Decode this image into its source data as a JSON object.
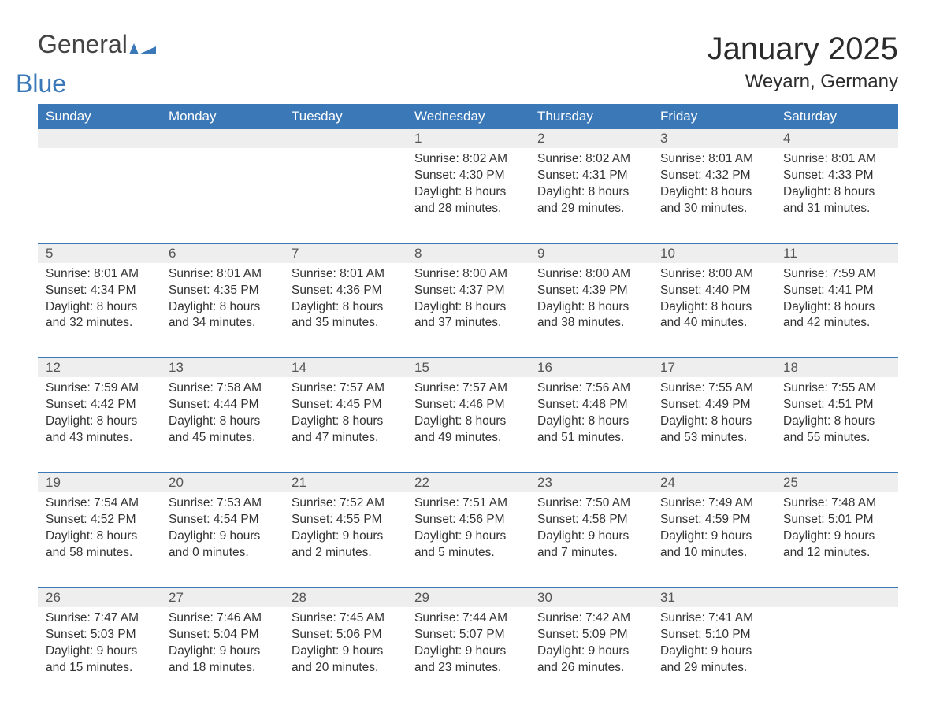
{
  "logo": {
    "word1": "General",
    "word2": "Blue",
    "icon_color": "#3b78b8"
  },
  "title": "January 2025",
  "location": "Weyarn, Germany",
  "colors": {
    "header_bg": "#3b78b8",
    "header_text": "#ffffff",
    "daynum_bg": "#eeeeee",
    "body_text": "#333333",
    "rule": "#3b78b8"
  },
  "weekdays": [
    "Sunday",
    "Monday",
    "Tuesday",
    "Wednesday",
    "Thursday",
    "Friday",
    "Saturday"
  ],
  "weeks": [
    [
      null,
      null,
      null,
      {
        "n": "1",
        "sunrise": "Sunrise: 8:02 AM",
        "sunset": "Sunset: 4:30 PM",
        "d1": "Daylight: 8 hours",
        "d2": "and 28 minutes."
      },
      {
        "n": "2",
        "sunrise": "Sunrise: 8:02 AM",
        "sunset": "Sunset: 4:31 PM",
        "d1": "Daylight: 8 hours",
        "d2": "and 29 minutes."
      },
      {
        "n": "3",
        "sunrise": "Sunrise: 8:01 AM",
        "sunset": "Sunset: 4:32 PM",
        "d1": "Daylight: 8 hours",
        "d2": "and 30 minutes."
      },
      {
        "n": "4",
        "sunrise": "Sunrise: 8:01 AM",
        "sunset": "Sunset: 4:33 PM",
        "d1": "Daylight: 8 hours",
        "d2": "and 31 minutes."
      }
    ],
    [
      {
        "n": "5",
        "sunrise": "Sunrise: 8:01 AM",
        "sunset": "Sunset: 4:34 PM",
        "d1": "Daylight: 8 hours",
        "d2": "and 32 minutes."
      },
      {
        "n": "6",
        "sunrise": "Sunrise: 8:01 AM",
        "sunset": "Sunset: 4:35 PM",
        "d1": "Daylight: 8 hours",
        "d2": "and 34 minutes."
      },
      {
        "n": "7",
        "sunrise": "Sunrise: 8:01 AM",
        "sunset": "Sunset: 4:36 PM",
        "d1": "Daylight: 8 hours",
        "d2": "and 35 minutes."
      },
      {
        "n": "8",
        "sunrise": "Sunrise: 8:00 AM",
        "sunset": "Sunset: 4:37 PM",
        "d1": "Daylight: 8 hours",
        "d2": "and 37 minutes."
      },
      {
        "n": "9",
        "sunrise": "Sunrise: 8:00 AM",
        "sunset": "Sunset: 4:39 PM",
        "d1": "Daylight: 8 hours",
        "d2": "and 38 minutes."
      },
      {
        "n": "10",
        "sunrise": "Sunrise: 8:00 AM",
        "sunset": "Sunset: 4:40 PM",
        "d1": "Daylight: 8 hours",
        "d2": "and 40 minutes."
      },
      {
        "n": "11",
        "sunrise": "Sunrise: 7:59 AM",
        "sunset": "Sunset: 4:41 PM",
        "d1": "Daylight: 8 hours",
        "d2": "and 42 minutes."
      }
    ],
    [
      {
        "n": "12",
        "sunrise": "Sunrise: 7:59 AM",
        "sunset": "Sunset: 4:42 PM",
        "d1": "Daylight: 8 hours",
        "d2": "and 43 minutes."
      },
      {
        "n": "13",
        "sunrise": "Sunrise: 7:58 AM",
        "sunset": "Sunset: 4:44 PM",
        "d1": "Daylight: 8 hours",
        "d2": "and 45 minutes."
      },
      {
        "n": "14",
        "sunrise": "Sunrise: 7:57 AM",
        "sunset": "Sunset: 4:45 PM",
        "d1": "Daylight: 8 hours",
        "d2": "and 47 minutes."
      },
      {
        "n": "15",
        "sunrise": "Sunrise: 7:57 AM",
        "sunset": "Sunset: 4:46 PM",
        "d1": "Daylight: 8 hours",
        "d2": "and 49 minutes."
      },
      {
        "n": "16",
        "sunrise": "Sunrise: 7:56 AM",
        "sunset": "Sunset: 4:48 PM",
        "d1": "Daylight: 8 hours",
        "d2": "and 51 minutes."
      },
      {
        "n": "17",
        "sunrise": "Sunrise: 7:55 AM",
        "sunset": "Sunset: 4:49 PM",
        "d1": "Daylight: 8 hours",
        "d2": "and 53 minutes."
      },
      {
        "n": "18",
        "sunrise": "Sunrise: 7:55 AM",
        "sunset": "Sunset: 4:51 PM",
        "d1": "Daylight: 8 hours",
        "d2": "and 55 minutes."
      }
    ],
    [
      {
        "n": "19",
        "sunrise": "Sunrise: 7:54 AM",
        "sunset": "Sunset: 4:52 PM",
        "d1": "Daylight: 8 hours",
        "d2": "and 58 minutes."
      },
      {
        "n": "20",
        "sunrise": "Sunrise: 7:53 AM",
        "sunset": "Sunset: 4:54 PM",
        "d1": "Daylight: 9 hours",
        "d2": "and 0 minutes."
      },
      {
        "n": "21",
        "sunrise": "Sunrise: 7:52 AM",
        "sunset": "Sunset: 4:55 PM",
        "d1": "Daylight: 9 hours",
        "d2": "and 2 minutes."
      },
      {
        "n": "22",
        "sunrise": "Sunrise: 7:51 AM",
        "sunset": "Sunset: 4:56 PM",
        "d1": "Daylight: 9 hours",
        "d2": "and 5 minutes."
      },
      {
        "n": "23",
        "sunrise": "Sunrise: 7:50 AM",
        "sunset": "Sunset: 4:58 PM",
        "d1": "Daylight: 9 hours",
        "d2": "and 7 minutes."
      },
      {
        "n": "24",
        "sunrise": "Sunrise: 7:49 AM",
        "sunset": "Sunset: 4:59 PM",
        "d1": "Daylight: 9 hours",
        "d2": "and 10 minutes."
      },
      {
        "n": "25",
        "sunrise": "Sunrise: 7:48 AM",
        "sunset": "Sunset: 5:01 PM",
        "d1": "Daylight: 9 hours",
        "d2": "and 12 minutes."
      }
    ],
    [
      {
        "n": "26",
        "sunrise": "Sunrise: 7:47 AM",
        "sunset": "Sunset: 5:03 PM",
        "d1": "Daylight: 9 hours",
        "d2": "and 15 minutes."
      },
      {
        "n": "27",
        "sunrise": "Sunrise: 7:46 AM",
        "sunset": "Sunset: 5:04 PM",
        "d1": "Daylight: 9 hours",
        "d2": "and 18 minutes."
      },
      {
        "n": "28",
        "sunrise": "Sunrise: 7:45 AM",
        "sunset": "Sunset: 5:06 PM",
        "d1": "Daylight: 9 hours",
        "d2": "and 20 minutes."
      },
      {
        "n": "29",
        "sunrise": "Sunrise: 7:44 AM",
        "sunset": "Sunset: 5:07 PM",
        "d1": "Daylight: 9 hours",
        "d2": "and 23 minutes."
      },
      {
        "n": "30",
        "sunrise": "Sunrise: 7:42 AM",
        "sunset": "Sunset: 5:09 PM",
        "d1": "Daylight: 9 hours",
        "d2": "and 26 minutes."
      },
      {
        "n": "31",
        "sunrise": "Sunrise: 7:41 AM",
        "sunset": "Sunset: 5:10 PM",
        "d1": "Daylight: 9 hours",
        "d2": "and 29 minutes."
      },
      null
    ]
  ]
}
